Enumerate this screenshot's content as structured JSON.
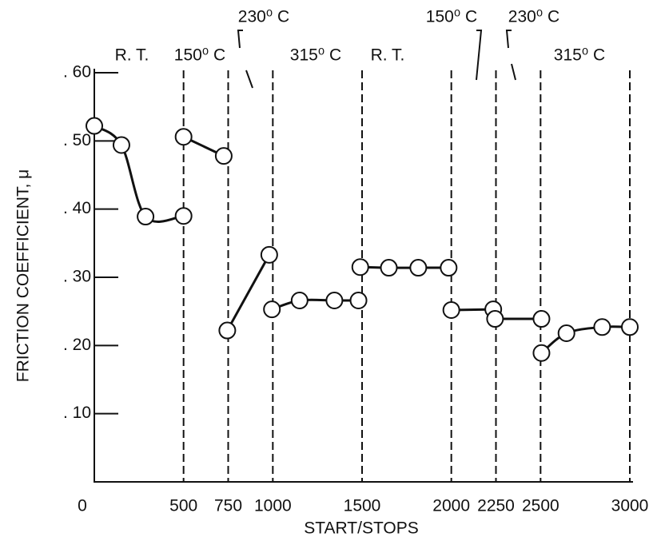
{
  "chart_data": {
    "type": "line",
    "xlabel": "START/STOPS",
    "ylabel": "FRICTION COEFFICIENT, μ",
    "xlim": [
      0,
      3000
    ],
    "ylim": [
      0,
      0.6
    ],
    "xticks": [
      0,
      500,
      750,
      1000,
      1500,
      2000,
      2250,
      2500,
      3000
    ],
    "yticks": [
      {
        "value": 0.1,
        "label": ". 10"
      },
      {
        "value": 0.2,
        "label": ". 20"
      },
      {
        "value": 0.3,
        "label": ". 30"
      },
      {
        "value": 0.4,
        "label": ". 40"
      },
      {
        "value": 0.5,
        "label": ". 50"
      },
      {
        "value": 0.6,
        "label": ". 60"
      }
    ],
    "dividers": [
      500,
      750,
      1000,
      1500,
      2000,
      2250,
      2500,
      3000
    ],
    "annotations": [
      "R. T.",
      "150⁰ C",
      "230⁰ C",
      "315⁰ C",
      "R. T.",
      "150⁰ C",
      "230⁰ C",
      "315⁰ C"
    ],
    "color": "#111111",
    "series": [
      {
        "x": [
          0,
          152,
          287,
          500
        ],
        "values": [
          0.522,
          0.494,
          0.389,
          0.39
        ]
      },
      {
        "x": [
          500,
          725
        ],
        "values": [
          0.506,
          0.478
        ]
      },
      {
        "x": [
          745,
          980
        ],
        "values": [
          0.222,
          0.333
        ]
      },
      {
        "x": [
          995,
          1150,
          1345,
          1480
        ],
        "values": [
          0.253,
          0.266,
          0.266,
          0.266
        ]
      },
      {
        "x": [
          1490,
          1650,
          1815,
          1985
        ],
        "values": [
          0.315,
          0.314,
          0.314,
          0.314
        ]
      },
      {
        "x": [
          2000,
          2235
        ],
        "values": [
          0.252,
          0.253
        ]
      },
      {
        "x": [
          2245,
          2505
        ],
        "values": [
          0.239,
          0.239
        ]
      },
      {
        "x": [
          2505,
          2645,
          2845,
          3000
        ],
        "values": [
          0.189,
          0.218,
          0.227,
          0.227
        ]
      }
    ]
  }
}
